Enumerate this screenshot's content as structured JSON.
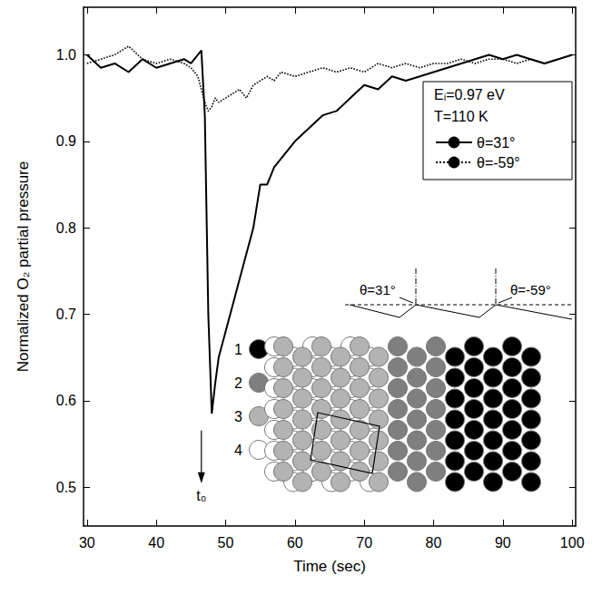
{
  "chart_data": {
    "type": "line",
    "x_label": "Time (sec)",
    "y_label": "Normalized O₂ partial pressure",
    "x": [
      30,
      32,
      34,
      36,
      38,
      40,
      42,
      44,
      45,
      46,
      46.5,
      47,
      47.5,
      48,
      48.5,
      49,
      50,
      51,
      52,
      53,
      54,
      55,
      56,
      57,
      58,
      60,
      62,
      64,
      66,
      68,
      70,
      72,
      74,
      76,
      78,
      80,
      82,
      84,
      86,
      88,
      90,
      92,
      94,
      96,
      98,
      100
    ],
    "series": [
      {
        "name": "θ=31°",
        "color": "#000000",
        "line_style": "solid",
        "values": [
          1.0,
          0.985,
          0.99,
          0.98,
          0.995,
          0.985,
          0.99,
          0.995,
          0.99,
          1.0,
          1.005,
          0.93,
          0.7,
          0.585,
          0.62,
          0.65,
          0.68,
          0.71,
          0.74,
          0.77,
          0.8,
          0.85,
          0.85,
          0.87,
          0.88,
          0.9,
          0.915,
          0.93,
          0.935,
          0.95,
          0.965,
          0.96,
          0.975,
          0.97,
          0.975,
          0.98,
          0.985,
          0.99,
          0.995,
          1.0,
          0.995,
          1.0,
          0.995,
          0.99,
          0.995,
          1.0
        ]
      },
      {
        "name": "θ=-59°",
        "color": "#000000",
        "line_style": "dotted",
        "values": [
          0.99,
          0.995,
          1.0,
          1.01,
          0.995,
          0.99,
          0.995,
          0.99,
          0.985,
          0.975,
          0.96,
          0.945,
          0.935,
          0.94,
          0.95,
          0.945,
          0.95,
          0.955,
          0.96,
          0.95,
          0.965,
          0.97,
          0.975,
          0.97,
          0.98,
          0.975,
          0.98,
          0.985,
          0.98,
          0.985,
          0.98,
          0.99,
          0.985,
          0.99,
          0.985,
          0.99,
          0.99,
          0.995,
          0.99,
          0.995,
          0.995,
          0.99,
          0.995,
          0.99,
          0.995,
          1.0
        ]
      }
    ],
    "xlim": [
      29.5,
      100.5
    ],
    "xticks": [
      30,
      40,
      50,
      60,
      70,
      80,
      90,
      100
    ],
    "ylim": [
      0.455,
      1.055
    ],
    "yticks": [
      0.5,
      0.6,
      0.7,
      0.8,
      0.9,
      {
        "value": 1,
        "label": "1.0"
      }
    ],
    "grid": false,
    "legend": "upper right",
    "annotations": [
      {
        "text": "Eᵢ=0.97 eV"
      },
      {
        "text": "T=110 K"
      },
      {
        "text": "t₀",
        "x": 46.5,
        "y": 0.49
      }
    ],
    "inset": {
      "levels": [
        "1",
        "2",
        "3",
        "4"
      ],
      "angles": [
        "θ=31°",
        "θ=-59°"
      ]
    }
  }
}
